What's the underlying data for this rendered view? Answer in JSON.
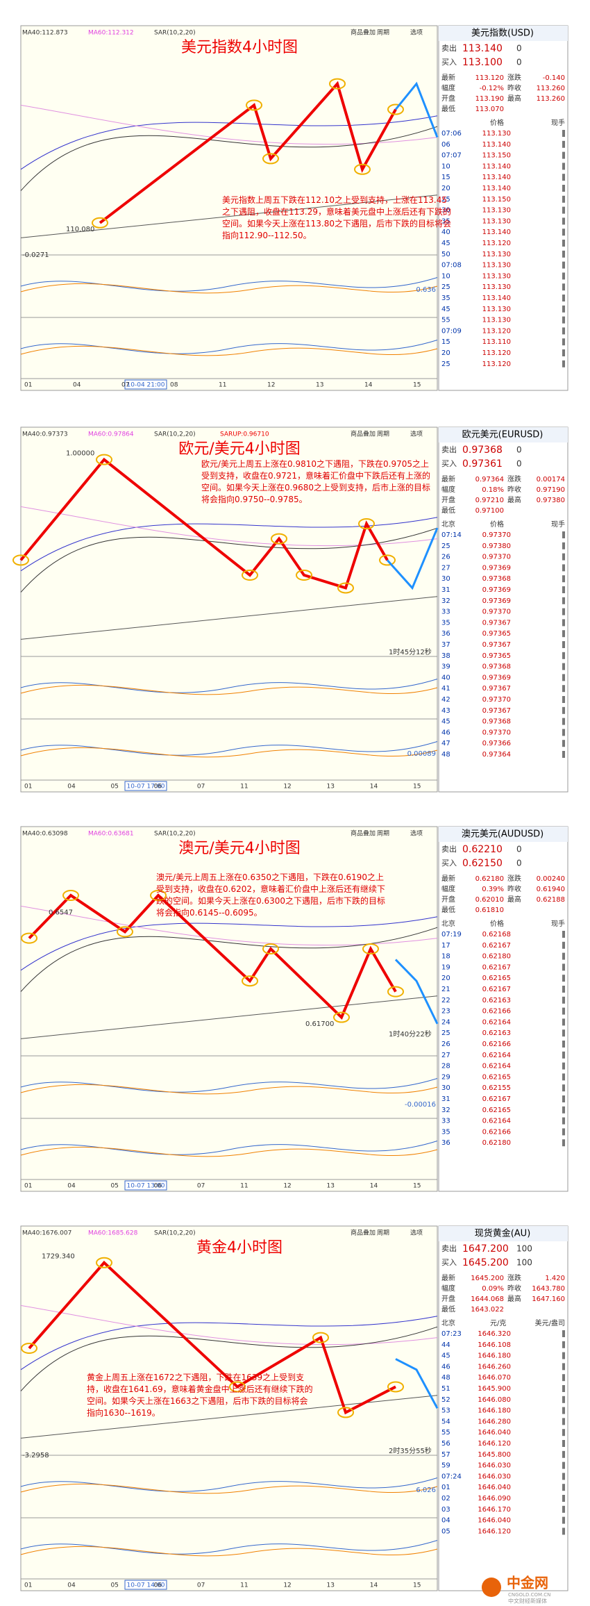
{
  "panels": [
    {
      "title": "美元指数4小时图",
      "indicators": [
        "MA40:112.873",
        "MA60:112.312",
        "SAR(10,2,20)"
      ],
      "toolbar": [
        "商品叠加",
        "周期",
        "选项"
      ],
      "annotation": "美元指数上周五下跌在112.10之上受到支持，上涨在113.45之下遇阻，收盘在113.29，意味着美元盘中上涨后还有下跌的空间。如果今天上涨在113.80之下遇阻，后市下跌的目标将会指向112.90--112.50。",
      "labels": [
        "110.080",
        "0.636",
        "-0.0271"
      ],
      "date_box": "10-04 21:00",
      "x_labels": [
        "01",
        "04",
        "07",
        "08",
        "11",
        "12",
        "13",
        "14",
        "15"
      ],
      "quote": {
        "name": "美元指数(USD)",
        "sell_label": "卖出",
        "sell": "113.140",
        "sell_vol": "0",
        "buy_label": "买入",
        "buy": "113.100",
        "buy_vol": "0",
        "stats": [
          [
            "最新",
            "113.120",
            "涨跌",
            "-0.140"
          ],
          [
            "幅度",
            "-0.12%",
            "昨收",
            "113.260"
          ],
          [
            "开盘",
            "113.190",
            "最高",
            "113.260"
          ],
          [
            "最低",
            "113.070"
          ]
        ],
        "list_header": [
          "价格",
          "现手"
        ],
        "rows": [
          [
            "07:06",
            "113.130"
          ],
          [
            "06",
            "113.140"
          ],
          [
            "07:07",
            "113.150"
          ],
          [
            "10",
            "113.140"
          ],
          [
            "15",
            "113.140"
          ],
          [
            "20",
            "113.140"
          ],
          [
            "25",
            "113.150"
          ],
          [
            "30",
            "113.130"
          ],
          [
            "35",
            "113.130"
          ],
          [
            "40",
            "113.140"
          ],
          [
            "45",
            "113.120"
          ],
          [
            "50",
            "113.130"
          ],
          [
            "07:08",
            "113.130"
          ],
          [
            "10",
            "113.130"
          ],
          [
            "25",
            "113.130"
          ],
          [
            "35",
            "113.140"
          ],
          [
            "45",
            "113.130"
          ],
          [
            "55",
            "113.130"
          ],
          [
            "07:09",
            "113.120"
          ],
          [
            "15",
            "113.110"
          ],
          [
            "20",
            "113.120"
          ],
          [
            "25",
            "113.120"
          ]
        ]
      }
    },
    {
      "title": "欧元/美元4小时图",
      "indicators": [
        "MA40:0.97373",
        "MA60:0.97864",
        "SAR(10,2,20)",
        "SARUP:0.96710"
      ],
      "toolbar": [
        "商品叠加",
        "周期",
        "选项"
      ],
      "annotation": "欧元/美元上周五上涨在0.9810之下遇阻，下跌在0.9705之上受到支持，收盘在0.9721，意味着汇价盘中下跌后还有上涨的空间。如果今天上涨在0.9680之上受到支持，后市上涨的目标将会指向0.9750--0.9785。",
      "labels": [
        "1.00000",
        "1时45分12秒",
        "0.00089"
      ],
      "date_box": "10-07 17:00",
      "x_labels": [
        "01",
        "04",
        "05",
        "06",
        "07",
        "11",
        "12",
        "13",
        "14",
        "15"
      ],
      "quote": {
        "name": "欧元美元(EURUSD)",
        "sell_label": "卖出",
        "sell": "0.97368",
        "sell_vol": "0",
        "buy_label": "买入",
        "buy": "0.97361",
        "buy_vol": "0",
        "stats": [
          [
            "最新",
            "0.97364",
            "涨跌",
            "0.00174"
          ],
          [
            "幅度",
            "0.18%",
            "昨收",
            "0.97190"
          ],
          [
            "开盘",
            "0.97210",
            "最高",
            "0.97380"
          ],
          [
            "最低",
            "0.97100"
          ]
        ],
        "list_header": [
          "北京",
          "价格",
          "现手"
        ],
        "rows": [
          [
            "07:14",
            "0.97370"
          ],
          [
            "25",
            "0.97380"
          ],
          [
            "26",
            "0.97370"
          ],
          [
            "27",
            "0.97369"
          ],
          [
            "30",
            "0.97368"
          ],
          [
            "31",
            "0.97369"
          ],
          [
            "32",
            "0.97369"
          ],
          [
            "33",
            "0.97370"
          ],
          [
            "35",
            "0.97367"
          ],
          [
            "36",
            "0.97365"
          ],
          [
            "37",
            "0.97367"
          ],
          [
            "38",
            "0.97365"
          ],
          [
            "39",
            "0.97368"
          ],
          [
            "40",
            "0.97369"
          ],
          [
            "41",
            "0.97367"
          ],
          [
            "42",
            "0.97370"
          ],
          [
            "43",
            "0.97367"
          ],
          [
            "45",
            "0.97368"
          ],
          [
            "46",
            "0.97370"
          ],
          [
            "47",
            "0.97366"
          ],
          [
            "48",
            "0.97364"
          ]
        ]
      }
    },
    {
      "title": "澳元/美元4小时图",
      "indicators": [
        "MA40:0.63098",
        "MA60:0.63681",
        "SAR(10,2,20)"
      ],
      "toolbar": [
        "商品叠加",
        "周期",
        "选项"
      ],
      "annotation": "澳元/美元上周五上涨在0.6350之下遇阻，下跌在0.6190之上受到支持，收盘在0.6202，意味着汇价盘中上涨后还有继续下跌的空间。如果今天上涨在0.6300之下遇阻，后市下跌的目标将会指向0.6145--0.6095。",
      "labels": [
        "0.6547",
        "0.61700",
        "1时40分22秒",
        "-0.00016"
      ],
      "date_box": "10-07 13:00",
      "x_labels": [
        "01",
        "04",
        "05",
        "06",
        "07",
        "11",
        "12",
        "13",
        "14",
        "15"
      ],
      "quote": {
        "name": "澳元美元(AUDUSD)",
        "sell_label": "卖出",
        "sell": "0.62210",
        "sell_vol": "0",
        "buy_label": "买入",
        "buy": "0.62150",
        "buy_vol": "0",
        "stats": [
          [
            "最新",
            "0.62180",
            "涨跌",
            "0.00240"
          ],
          [
            "幅度",
            "0.39%",
            "昨收",
            "0.61940"
          ],
          [
            "开盘",
            "0.62010",
            "最高",
            "0.62188"
          ],
          [
            "最低",
            "0.61810"
          ]
        ],
        "list_header": [
          "北京",
          "价格",
          "现手"
        ],
        "rows": [
          [
            "07:19",
            "0.62168"
          ],
          [
            "17",
            "0.62167"
          ],
          [
            "18",
            "0.62180"
          ],
          [
            "19",
            "0.62167"
          ],
          [
            "20",
            "0.62165"
          ],
          [
            "21",
            "0.62167"
          ],
          [
            "22",
            "0.62163"
          ],
          [
            "23",
            "0.62166"
          ],
          [
            "24",
            "0.62164"
          ],
          [
            "25",
            "0.62163"
          ],
          [
            "26",
            "0.62166"
          ],
          [
            "27",
            "0.62164"
          ],
          [
            "28",
            "0.62164"
          ],
          [
            "29",
            "0.62165"
          ],
          [
            "30",
            "0.62155"
          ],
          [
            "31",
            "0.62167"
          ],
          [
            "32",
            "0.62165"
          ],
          [
            "33",
            "0.62164"
          ],
          [
            "35",
            "0.62166"
          ],
          [
            "36",
            "0.62180"
          ]
        ]
      }
    },
    {
      "title": "黄金4小时图",
      "indicators": [
        "MA40:1676.007",
        "MA60:1685.628",
        "SAR(10,2,20)"
      ],
      "toolbar": [
        "商品叠加",
        "周期",
        "选项"
      ],
      "annotation": "黄金上周五上涨在1672之下遇阻，下跌在1639之上受到支持，收盘在1641.69，意味着黄金盘中上涨后还有继续下跌的空间。如果今天上涨在1663之下遇阻，后市下跌的目标将会指向1630--1619。",
      "labels": [
        "1729.340",
        "2时35分55秒",
        "-3.2958",
        "6.026"
      ],
      "date_box": "10-07 14:00",
      "x_labels": [
        "01",
        "04",
        "05",
        "06",
        "07",
        "11",
        "12",
        "13",
        "14",
        "15"
      ],
      "quote": {
        "name": "现货黄金(AU)",
        "sell_label": "卖出",
        "sell": "1647.200",
        "sell_vol": "100",
        "buy_label": "买入",
        "buy": "1645.200",
        "buy_vol": "100",
        "stats": [
          [
            "最新",
            "1645.200",
            "涨跌",
            "1.420"
          ],
          [
            "幅度",
            "0.09%",
            "昨收",
            "1643.780"
          ],
          [
            "开盘",
            "1644.068",
            "最高",
            "1647.160"
          ],
          [
            "最低",
            "1643.022"
          ]
        ],
        "list_header": [
          "北京",
          "元/克",
          "美元/盎司"
        ],
        "rows": [
          [
            "07:23",
            "1646.320"
          ],
          [
            "44",
            "1646.108"
          ],
          [
            "45",
            "1646.180"
          ],
          [
            "46",
            "1646.260"
          ],
          [
            "48",
            "1646.070"
          ],
          [
            "51",
            "1645.900"
          ],
          [
            "52",
            "1646.080"
          ],
          [
            "53",
            "1646.180"
          ],
          [
            "54",
            "1646.280"
          ],
          [
            "55",
            "1646.040"
          ],
          [
            "56",
            "1646.120"
          ],
          [
            "57",
            "1645.800"
          ],
          [
            "59",
            "1646.030"
          ],
          [
            "07:24",
            "1646.030"
          ],
          [
            "01",
            "1646.040"
          ],
          [
            "02",
            "1646.090"
          ],
          [
            "03",
            "1646.170"
          ],
          [
            "04",
            "1646.040"
          ],
          [
            "05",
            "1646.120"
          ]
        ]
      }
    }
  ],
  "footer": {
    "brand": "中金网",
    "site": "CNGOLD.COM.CN",
    "slogan": "中文财经新媒体"
  }
}
